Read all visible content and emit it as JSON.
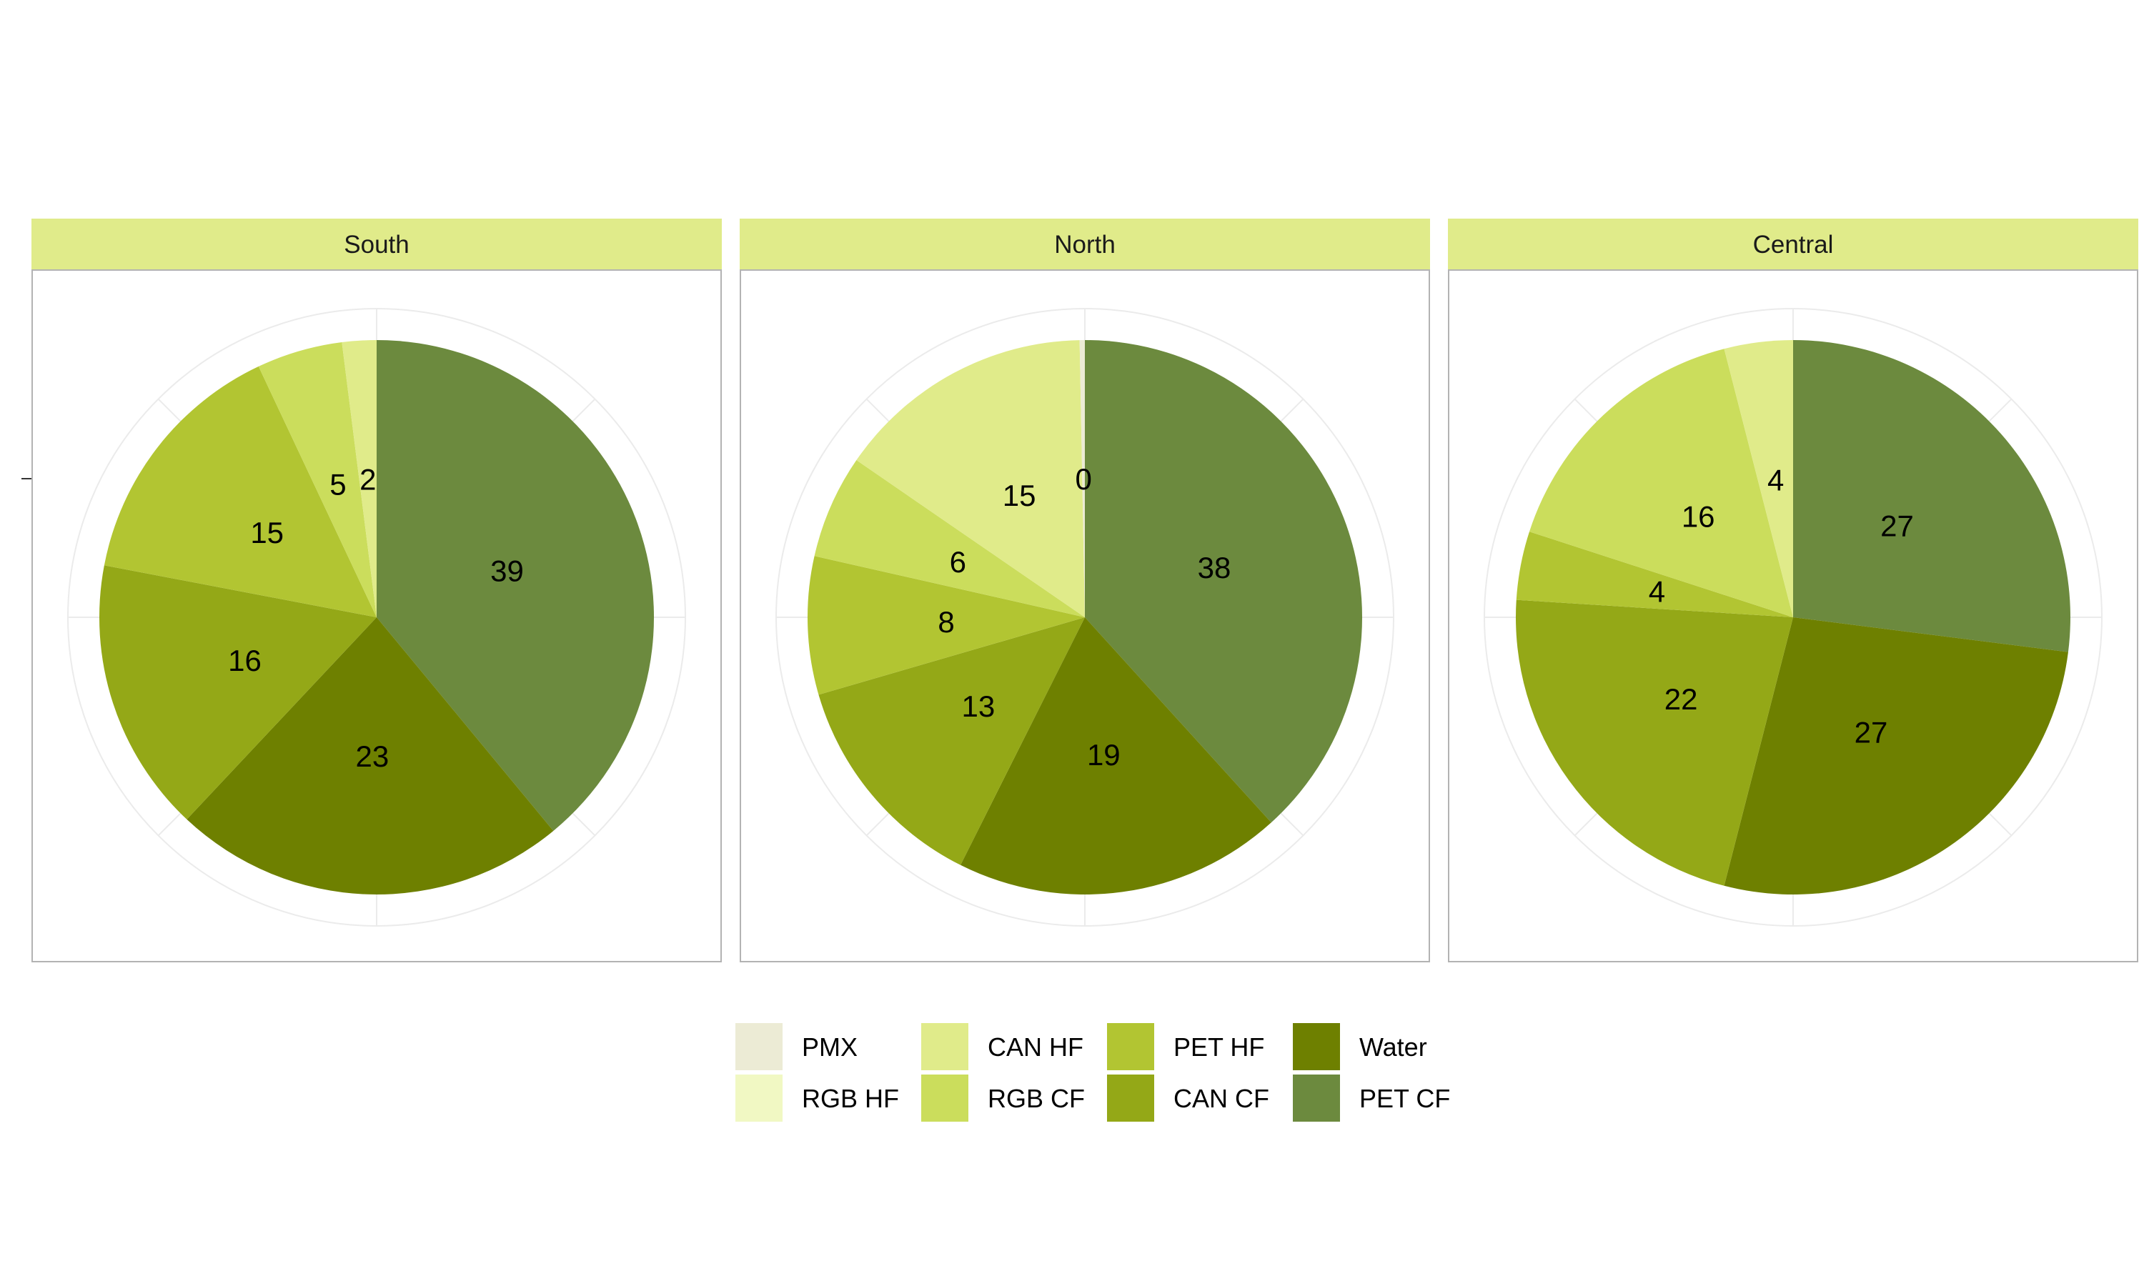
{
  "chart_data": {
    "type": "pie",
    "categories": [
      "PMX",
      "RGB HF",
      "CAN HF",
      "RGB CF",
      "PET HF",
      "CAN CF",
      "Water",
      "PET CF"
    ],
    "colors": {
      "PMX": "#ECEBD5",
      "RGB HF": "#F1F8C3",
      "CAN HF": "#E0EB8A",
      "RGB CF": "#CBDD5C",
      "PET HF": "#B2C532",
      "CAN CF": "#94A817",
      "Water": "#6E8000",
      "PET CF": "#6C8A3E"
    },
    "strip_color": "#E0EB8A",
    "panels": [
      {
        "title": "South",
        "values": {
          "PET CF": 39,
          "Water": 23,
          "CAN CF": 16,
          "PET HF": 15,
          "RGB CF": 5,
          "CAN HF": 2,
          "RGB HF": 0,
          "PMX": 0
        },
        "labels": [
          "39",
          "23",
          "16",
          "15",
          "5",
          "2"
        ]
      },
      {
        "title": "North",
        "values": {
          "PET CF": 38,
          "Water": 19,
          "CAN CF": 13,
          "PET HF": 8,
          "RGB CF": 6,
          "CAN HF": 15,
          "RGB HF": 0,
          "PMX": 0.3
        },
        "labels": [
          "38",
          "19",
          "13",
          "8",
          "6",
          "15",
          "0"
        ]
      },
      {
        "title": "Central",
        "values": {
          "PET CF": 27,
          "Water": 27,
          "CAN CF": 22,
          "PET HF": 4,
          "RGB CF": 16,
          "CAN HF": 4,
          "RGB HF": 0,
          "PMX": 0
        },
        "labels": [
          "27",
          "27",
          "22",
          "4",
          "16",
          "4"
        ]
      }
    ],
    "legend": {
      "position": "bottom",
      "columns": [
        [
          "PMX",
          "RGB HF"
        ],
        [
          "CAN HF",
          "RGB CF"
        ],
        [
          "PET HF",
          "CAN CF"
        ],
        [
          "Water",
          "PET CF"
        ]
      ]
    },
    "grid": true
  }
}
